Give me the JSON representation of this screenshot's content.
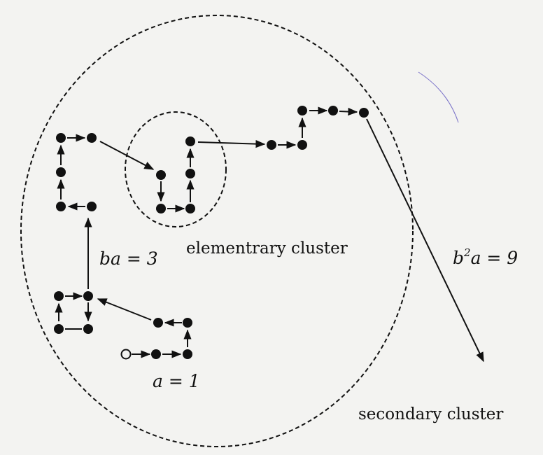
{
  "colors": {
    "ink": "#111111",
    "paper": "#f3f3f1",
    "pen": "#7a72c8"
  },
  "labels": {
    "a": "a = 1",
    "ba": "ba = 3",
    "b2a": "b",
    "b2a_exp": "2",
    "b2a_rest": "a = 9",
    "elementary": "elementrary cluster",
    "secondary": "secondary cluster"
  },
  "counts": {
    "level_a_nodes": 4,
    "level_ba_nodes": 12,
    "level_b2a_nodes": 36
  },
  "start_node": "open-circle-seed"
}
